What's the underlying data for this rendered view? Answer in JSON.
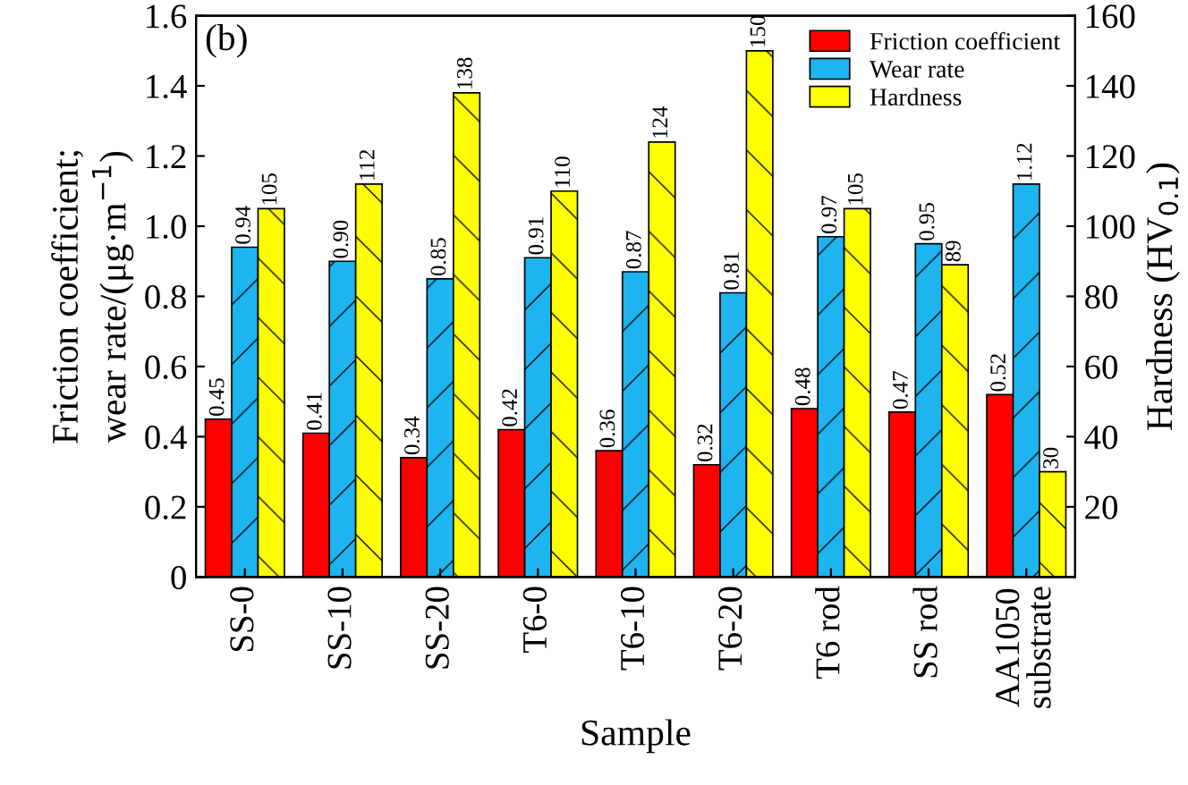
{
  "chart_data": {
    "type": "bar",
    "categories": [
      "SS-0",
      "SS-10",
      "SS-20",
      "T6-0",
      "T6-10",
      "T6-20",
      "T6 rod",
      "SS rod",
      "AA1050\nsubstrate"
    ],
    "xlabel": "Sample",
    "ylabel": "Friction coefficient;\nwear rate/(μg·m$^{−1}$)",
    "y2label": "Hardness (HV$_{0.1}$)",
    "annotations": [
      "(b)"
    ],
    "series": [
      {
        "name": "Friction coefficient",
        "color": "#ff0000",
        "values": [
          0.45,
          0.41,
          0.34,
          0.42,
          0.36,
          0.32,
          0.48,
          0.47,
          0.52
        ],
        "value_labels": [
          "0.45",
          "0.41",
          "0.34",
          "0.42",
          "0.36",
          "0.32",
          "0.48",
          "0.47",
          "0.52"
        ]
      },
      {
        "name": "Wear rate",
        "color": "#1eb4f0",
        "values": [
          0.94,
          0.9,
          0.85,
          0.91,
          0.87,
          0.81,
          0.97,
          0.95,
          1.12
        ],
        "value_labels": [
          "0.94",
          "0.90",
          "0.85",
          "0.91",
          "0.87",
          "0.81",
          "0.97",
          "0.95",
          "1.12"
        ]
      },
      {
        "name": "Hardness",
        "color": "#ffff00",
        "axis": "y2",
        "values": [
          105,
          112,
          138,
          110,
          124,
          150,
          105,
          89,
          30
        ],
        "value_labels": [
          "105",
          "112",
          "138",
          "110",
          "124",
          "150",
          "105",
          "89",
          "30"
        ]
      }
    ],
    "ylim": [
      0,
      1.6
    ],
    "yticks": [
      0,
      0.2,
      0.4,
      0.6,
      0.8,
      {
        "value": 1,
        "label": "1.0"
      },
      1.2,
      1.4,
      1.6
    ],
    "y2lim": [
      0,
      160
    ],
    "y2ticks": [
      20,
      40,
      60,
      80,
      100,
      120,
      140,
      160
    ],
    "legend": "top right",
    "grid": false
  }
}
